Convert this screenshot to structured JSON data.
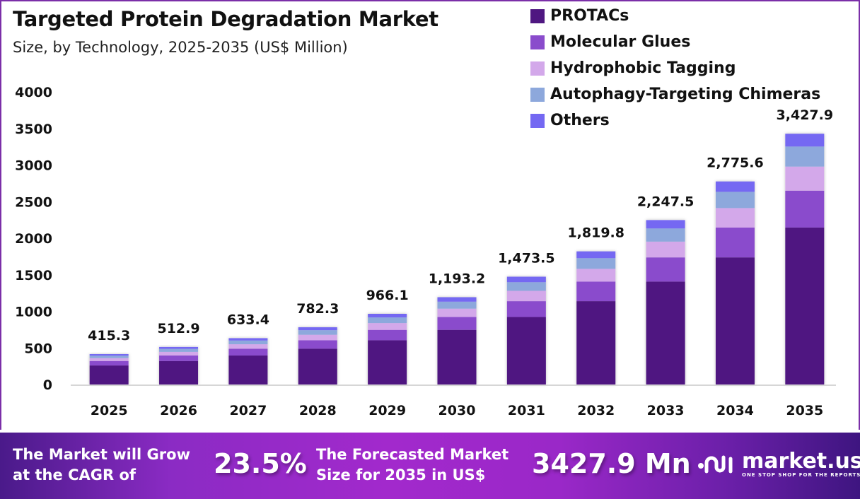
{
  "header": {
    "title": "Targeted Protein Degradation Market",
    "subtitle": "Size, by Technology, 2025-2035 (US$ Million)"
  },
  "chart_data": {
    "type": "bar",
    "stacked": true,
    "title": "Targeted Protein Degradation Market",
    "subtitle": "Size, by Technology, 2025-2035 (US$ Million)",
    "xlabel": "",
    "ylabel": "US$ Million",
    "ylim": [
      0,
      4000
    ],
    "yticks": [
      0,
      500,
      1000,
      1500,
      2000,
      2500,
      3000,
      3500,
      4000
    ],
    "grid": false,
    "legend_position": "top-right",
    "categories": [
      "2025",
      "2026",
      "2027",
      "2028",
      "2029",
      "2030",
      "2031",
      "2032",
      "2033",
      "2034",
      "2035"
    ],
    "totals": [
      415.3,
      512.9,
      633.4,
      782.3,
      966.1,
      1193.2,
      1473.5,
      1819.8,
      2247.5,
      2775.6,
      3427.9
    ],
    "total_labels": [
      "415.3",
      "512.9",
      "633.4",
      "782.3",
      "966.1",
      "1,193.2",
      "1,473.5",
      "1,819.8",
      "2,247.5",
      "2,775.6",
      "3,427.9"
    ],
    "series": [
      {
        "name": "PROTACs",
        "color": "#4f1781",
        "values": [
          260.0,
          321.1,
          396.5,
          489.7,
          604.8,
          747.0,
          922.4,
          1139.2,
          1407.0,
          1737.5,
          2145.9
        ]
      },
      {
        "name": "Molecular Glues",
        "color": "#8a4ccc",
        "values": [
          61.0,
          75.4,
          93.1,
          115.0,
          142.0,
          175.4,
          216.6,
          267.5,
          330.4,
          408.0,
          503.9
        ]
      },
      {
        "name": "Hydrophobic Tagging",
        "color": "#d3a8ea",
        "values": [
          39.9,
          49.2,
          60.8,
          75.1,
          92.7,
          114.5,
          141.5,
          174.7,
          215.8,
          266.5,
          329.1
        ]
      },
      {
        "name": "Autophagy-Targeting Chimeras",
        "color": "#8da8dc",
        "values": [
          33.2,
          41.0,
          50.7,
          62.6,
          77.3,
          95.5,
          117.9,
          145.6,
          179.8,
          222.0,
          274.2
        ]
      },
      {
        "name": "Others",
        "color": "#7468f2",
        "values": [
          21.2,
          26.2,
          32.3,
          39.9,
          49.3,
          60.8,
          75.1,
          92.8,
          114.5,
          141.6,
          174.8
        ]
      }
    ]
  },
  "footer": {
    "cagr_text_line1": "The Market will Grow",
    "cagr_text_line2": "at the CAGR of",
    "cagr_value": "23.5%",
    "forecast_text_line1": "The Forecasted Market",
    "forecast_text_line2": "Size for 2035 in US$",
    "forecast_value": "3427.9 Mn",
    "brand_name": "market.us",
    "brand_tagline": "ONE STOP SHOP FOR THE REPORTS"
  }
}
